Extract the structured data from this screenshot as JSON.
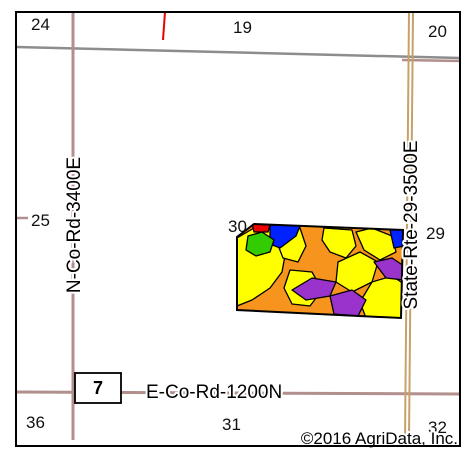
{
  "sections": {
    "s24": "24",
    "s19": "19",
    "s20": "20",
    "s25": "25",
    "s30": "30",
    "s29": "29",
    "s36": "36",
    "s31": "31",
    "s32": "32"
  },
  "roads": {
    "north_south_west": "N-Co-Rd-3400E",
    "state_route": "State-Rte-29-3500E",
    "east_west_south": "E-Co-Rd-1200N",
    "route_shield": "7"
  },
  "copyright": "©2016 AgriData, Inc.",
  "colors": {
    "frame": "#000000",
    "section_line": "#b08f8c",
    "section_line_upper": "#8d8d8d",
    "state_route_line": "#c8a06a",
    "soil_orange": "#f7941d",
    "soil_yellow": "#ffff00",
    "soil_purple": "#9933cc",
    "soil_blue": "#0022ff",
    "soil_green": "#33cc00",
    "soil_red": "#ee0000"
  }
}
